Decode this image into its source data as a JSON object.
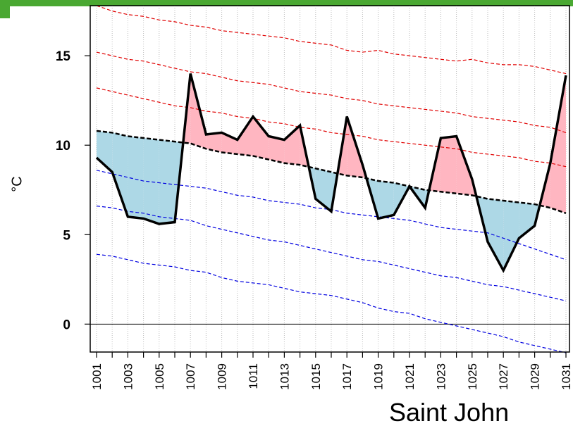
{
  "station": "Saint John",
  "chart_data": {
    "type": "line",
    "xlabel": "",
    "ylabel": "°C",
    "xlim": [
      1001,
      1031
    ],
    "ylim": [
      -1.6,
      17.8
    ],
    "yticks": [
      0,
      5,
      10,
      15
    ],
    "x_tick_labels": [
      "1001",
      "1003",
      "1005",
      "1007",
      "1009",
      "1011",
      "1013",
      "1015",
      "1017",
      "1019",
      "1021",
      "1023",
      "1025",
      "1027",
      "1029",
      "1031"
    ],
    "grid": "vertical dotted",
    "fill_above_color": "#ffb6c1",
    "fill_below_color": "#add8e6",
    "observed_color": "#000000",
    "upper_band_color": "#e00000",
    "lower_band_color": "#0000e0",
    "x": [
      1001,
      1002,
      1003,
      1004,
      1005,
      1006,
      1007,
      1008,
      1009,
      1010,
      1011,
      1012,
      1013,
      1014,
      1015,
      1016,
      1017,
      1018,
      1019,
      1020,
      1021,
      1022,
      1023,
      1024,
      1025,
      1026,
      1027,
      1028,
      1029,
      1030,
      1031
    ],
    "observed": [
      9.3,
      8.5,
      6.0,
      5.9,
      5.6,
      5.7,
      14.0,
      10.6,
      10.7,
      10.3,
      11.6,
      10.5,
      10.3,
      11.1,
      7.0,
      6.3,
      11.6,
      8.9,
      5.9,
      6.1,
      7.7,
      6.5,
      10.4,
      10.5,
      8.1,
      4.6,
      3.0,
      4.8,
      5.5,
      9.0,
      13.9
    ],
    "normal": [
      10.8,
      10.7,
      10.5,
      10.4,
      10.3,
      10.2,
      10.1,
      9.8,
      9.6,
      9.5,
      9.4,
      9.2,
      9.0,
      8.9,
      8.7,
      8.5,
      8.3,
      8.2,
      8.0,
      7.9,
      7.7,
      7.5,
      7.4,
      7.3,
      7.2,
      7.0,
      6.9,
      6.8,
      6.7,
      6.5,
      6.2
    ],
    "upper_bands": [
      [
        13.2,
        13.0,
        12.8,
        12.6,
        12.4,
        12.2,
        12.1,
        11.9,
        11.8,
        11.6,
        11.5,
        11.3,
        11.2,
        11.0,
        10.9,
        10.7,
        10.6,
        10.5,
        10.3,
        10.2,
        10.1,
        10.0,
        9.9,
        9.8,
        9.6,
        9.5,
        9.4,
        9.3,
        9.1,
        9.0,
        8.8
      ],
      [
        15.2,
        15.0,
        14.8,
        14.7,
        14.5,
        14.3,
        14.1,
        14.0,
        13.8,
        13.6,
        13.5,
        13.4,
        13.2,
        13.0,
        12.9,
        12.8,
        12.6,
        12.5,
        12.3,
        12.2,
        12.1,
        12.0,
        11.9,
        11.8,
        11.6,
        11.5,
        11.4,
        11.3,
        11.1,
        11.0,
        10.7
      ],
      [
        17.8,
        17.5,
        17.3,
        17.2,
        17.0,
        16.9,
        16.7,
        16.6,
        16.4,
        16.3,
        16.2,
        16.1,
        16.0,
        15.8,
        15.7,
        15.6,
        15.3,
        15.2,
        15.3,
        15.1,
        15.0,
        14.9,
        14.8,
        14.7,
        14.8,
        14.6,
        14.5,
        14.5,
        14.4,
        14.2,
        14.0
      ]
    ],
    "lower_bands": [
      [
        8.6,
        8.4,
        8.2,
        8.0,
        7.9,
        7.8,
        7.7,
        7.6,
        7.4,
        7.2,
        7.1,
        6.9,
        6.8,
        6.7,
        6.5,
        6.4,
        6.2,
        6.1,
        6.0,
        5.9,
        5.8,
        5.6,
        5.4,
        5.3,
        5.2,
        5.1,
        4.8,
        4.5,
        4.2,
        3.9,
        3.6
      ],
      [
        6.6,
        6.5,
        6.3,
        6.2,
        6.0,
        5.9,
        5.8,
        5.5,
        5.3,
        5.1,
        4.9,
        4.7,
        4.6,
        4.4,
        4.2,
        4.0,
        3.8,
        3.6,
        3.5,
        3.3,
        3.1,
        2.9,
        2.7,
        2.6,
        2.4,
        2.2,
        2.1,
        1.9,
        1.7,
        1.5,
        1.3
      ],
      [
        3.9,
        3.8,
        3.6,
        3.4,
        3.3,
        3.2,
        3.0,
        2.9,
        2.6,
        2.4,
        2.3,
        2.2,
        2.0,
        1.8,
        1.7,
        1.6,
        1.4,
        1.2,
        0.9,
        0.7,
        0.6,
        0.3,
        0.1,
        -0.1,
        -0.3,
        -0.5,
        -0.7,
        -1.0,
        -1.2,
        -1.4,
        -1.6
      ]
    ]
  }
}
